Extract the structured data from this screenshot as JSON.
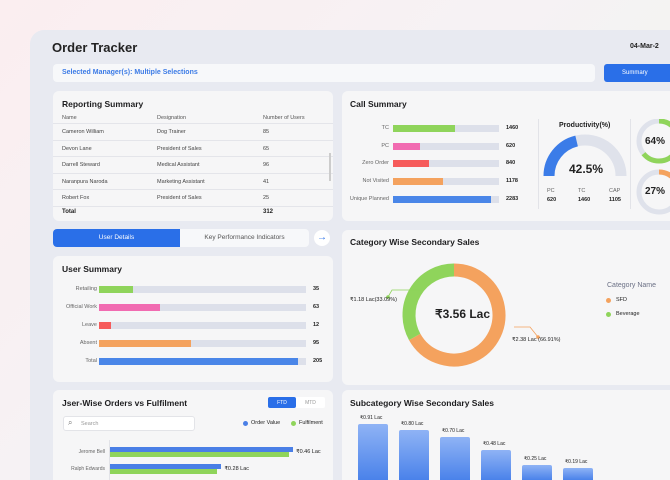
{
  "header": {
    "title": "Order Tracker",
    "date": "04-Mar-2",
    "manager_filter": "Selected Manager(s): Multiple Selections",
    "summary_button": "Summary"
  },
  "reporting": {
    "title": "Reporting Summary",
    "columns": [
      "Name",
      "Designation",
      "Number of Users"
    ],
    "rows": [
      [
        "Cameron William",
        "Dog Trainer",
        "85"
      ],
      [
        "Devon Lane",
        "President of Sales",
        "65"
      ],
      [
        "Darrell Steward",
        "Medical Assistant",
        "96"
      ],
      [
        "Naranpura Naroda",
        "Marketing Assistant",
        "41"
      ],
      [
        "Robert Fox",
        "President of Sales",
        "25"
      ]
    ],
    "total_label": "Total",
    "total": "312"
  },
  "call_summary": {
    "title": "Call Summary",
    "max": 2480,
    "bars": [
      {
        "label": "TC",
        "value": 1460,
        "display": "1460",
        "color": "#8fd45b"
      },
      {
        "label": "PC",
        "value": 620,
        "display": "620",
        "color": "#f16bb1"
      },
      {
        "label": "Zero Order",
        "value": 840,
        "display": "840",
        "color": "#f65b5b"
      },
      {
        "label": "Not Visited",
        "value": 1178,
        "display": "1178",
        "color": "#f4a25e"
      },
      {
        "label": "Unique Planned",
        "value": 2283,
        "display": "2283",
        "color": "#4a86e8"
      }
    ]
  },
  "productivity": {
    "title": "Productivity(%)",
    "value": 42.5,
    "display": "42.5%",
    "stats": [
      {
        "label": "PC",
        "value": "620"
      },
      {
        "label": "TC",
        "value": "1460"
      },
      {
        "label": "CAP",
        "value": "1105"
      }
    ]
  },
  "radials": [
    {
      "value": 64,
      "display": "64%",
      "color": "#8fd45b"
    },
    {
      "value": 27,
      "display": "27%",
      "color": "#f4a25e"
    }
  ],
  "tabs": [
    {
      "label": "User Details",
      "active": true
    },
    {
      "label": "Key Performance Indicators",
      "active": false
    }
  ],
  "user_summary": {
    "title": "User Summary",
    "max": 213,
    "bars": [
      {
        "label": "Retailing",
        "value": 35,
        "display": "35",
        "color": "#8fd45b"
      },
      {
        "label": "Official Work",
        "value": 63,
        "display": "63",
        "color": "#f16bb1"
      },
      {
        "label": "Leave",
        "value": 12,
        "display": "12",
        "color": "#f65b5b"
      },
      {
        "label": "Absent",
        "value": 95,
        "display": "95",
        "color": "#f4a25e"
      },
      {
        "label": "Total",
        "value": 205,
        "display": "205",
        "color": "#4a86e8"
      }
    ]
  },
  "category": {
    "title": "Category Wise Secondary Sales",
    "total": "₹3.56 Lac",
    "legend_title": "Category Name",
    "slices": [
      {
        "name": "SFD",
        "value": 66.91,
        "label": "₹2.38 Lac (66.91%)",
        "color": "#f4a25e"
      },
      {
        "name": "Beverage",
        "value": 33.09,
        "label": "₹1.18 Lac(33.09%)",
        "color": "#8fd45b"
      }
    ]
  },
  "orders": {
    "title": "Jser-Wise Orders vs Fulfilment",
    "toggle": [
      "FTD",
      "MTD"
    ],
    "search_placeholder": "Search",
    "legend": [
      {
        "name": "Order Value",
        "color": "#4a7fe6"
      },
      {
        "name": "Fulfilment",
        "color": "#8fd45b"
      }
    ],
    "rows": [
      {
        "name": "Jerome Bell",
        "order": 0.46,
        "fulfilment": 0.45,
        "label": "₹0.46 Lac"
      },
      {
        "name": "Ralph Edwards",
        "order": 0.28,
        "fulfilment": 0.27,
        "label": "₹0.28 Lac"
      }
    ]
  },
  "subcategory": {
    "title": "Subcategory Wise Secondary Sales",
    "bars": [
      {
        "value": 0.91,
        "label": "₹0.91 Lac"
      },
      {
        "value": 0.8,
        "label": "₹0.80 Lac"
      },
      {
        "value": 0.7,
        "label": "₹0.70 Lac"
      },
      {
        "value": 0.48,
        "label": "₹0.48 Lac"
      },
      {
        "value": 0.25,
        "label": "₹0.25 Lac"
      },
      {
        "value": 0.19,
        "label": "₹0.19 Lac"
      }
    ]
  }
}
